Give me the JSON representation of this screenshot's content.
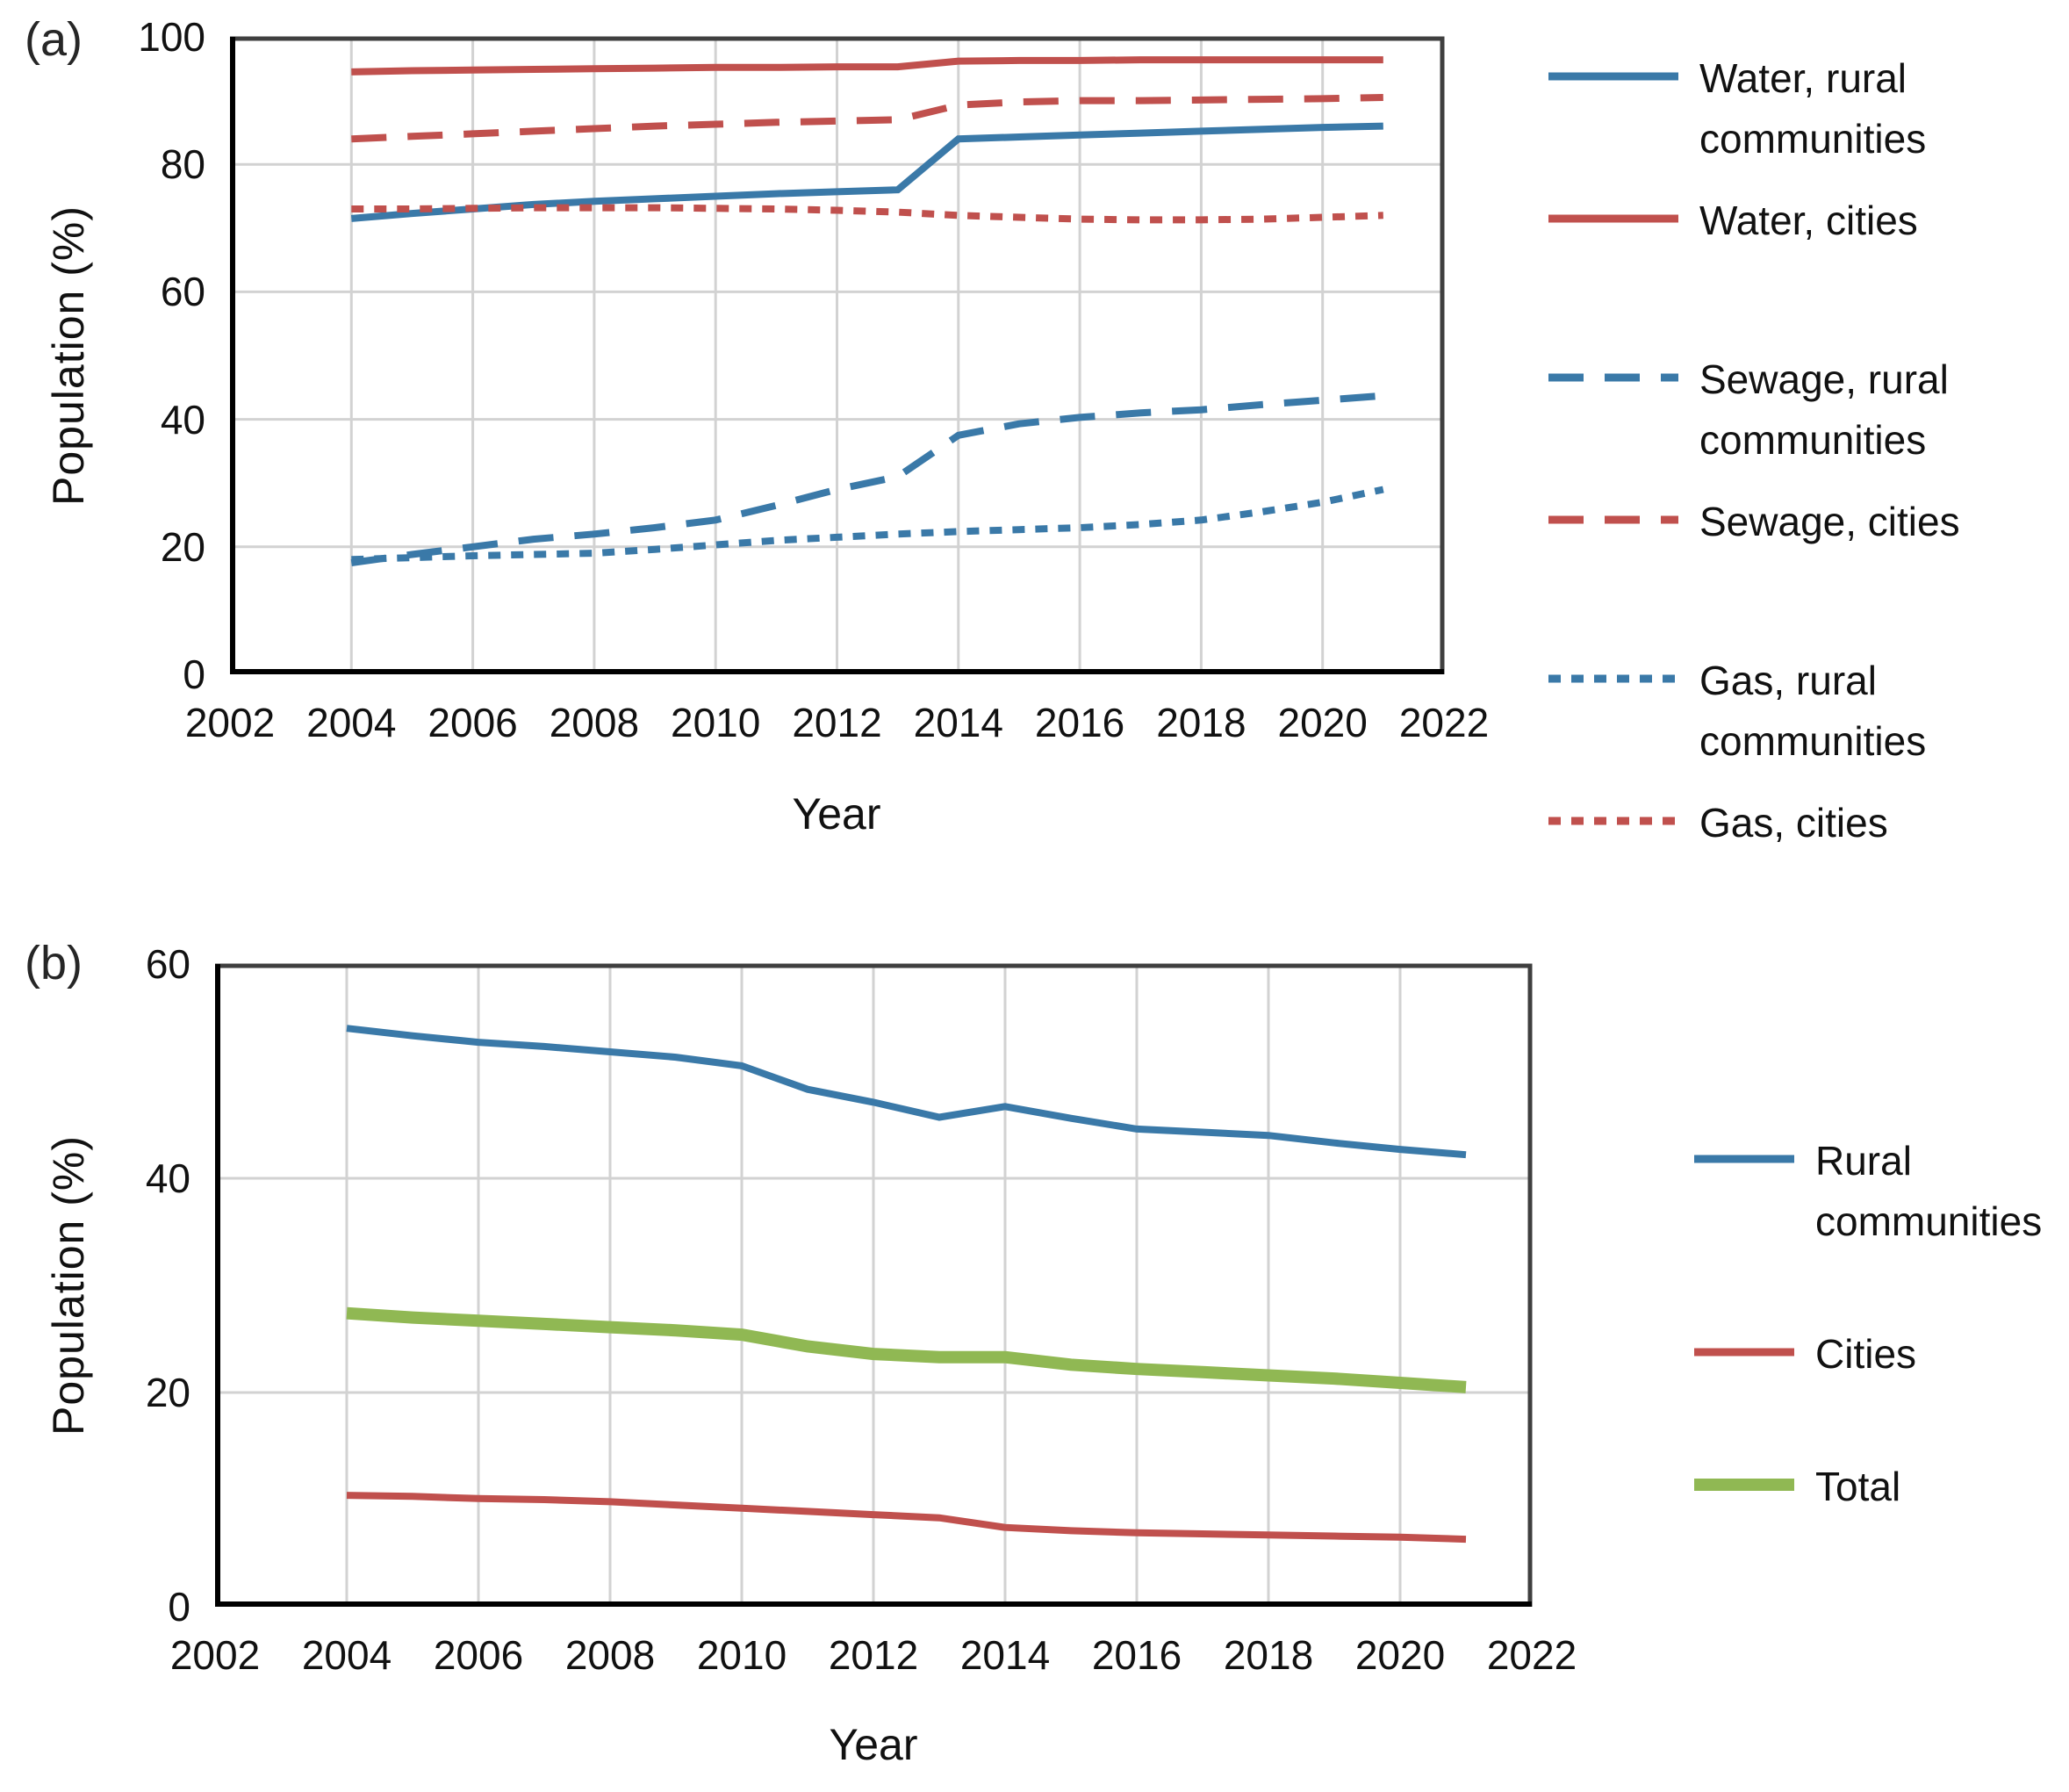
{
  "figure": {
    "panel_a_label": "(a)",
    "panel_b_label": "(b)"
  },
  "colors": {
    "blue": "#3a79a8",
    "red": "#c0504d",
    "green": "#90b853",
    "grid": "#d2d2d2",
    "border": "#3f3f3f",
    "axis": "#000000",
    "text": "#111111"
  },
  "chart_data": [
    {
      "id": "a",
      "type": "line",
      "title": "",
      "xlabel": "Year",
      "ylabel": "Population (%)",
      "xlim": [
        2002,
        2022
      ],
      "ylim": [
        0,
        100
      ],
      "x_ticks": [
        2002,
        2004,
        2006,
        2008,
        2010,
        2012,
        2014,
        2016,
        2018,
        2020,
        2022
      ],
      "y_ticks": [
        0,
        20,
        40,
        60,
        80,
        100
      ],
      "grid": true,
      "legend_position": "right",
      "x": [
        2004,
        2005,
        2006,
        2007,
        2008,
        2009,
        2010,
        2011,
        2012,
        2013,
        2014,
        2015,
        2016,
        2017,
        2018,
        2019,
        2020,
        2021
      ],
      "series": [
        {
          "name": "Water, rural communities",
          "label_lines": [
            "Water, rural",
            "communities"
          ],
          "color": "blue",
          "dash": "solid",
          "thick": false,
          "values": [
            71.5,
            72.3,
            73.0,
            73.7,
            74.2,
            74.6,
            75.0,
            75.4,
            75.7,
            76.0,
            84.0,
            84.3,
            84.6,
            84.9,
            85.2,
            85.5,
            85.8,
            86.0
          ]
        },
        {
          "name": "Water, cities",
          "label_lines": [
            "Water, cities"
          ],
          "color": "red",
          "dash": "solid",
          "thick": false,
          "values": [
            94.5,
            94.7,
            94.8,
            94.9,
            95.0,
            95.1,
            95.2,
            95.2,
            95.3,
            95.3,
            96.2,
            96.3,
            96.3,
            96.4,
            96.4,
            96.4,
            96.4,
            96.4
          ]
        },
        {
          "name": "Sewage, rural communities",
          "label_lines": [
            "Sewage, rural",
            "communities"
          ],
          "color": "blue",
          "dash": "long",
          "thick": false,
          "values": [
            17.5,
            18.8,
            20.0,
            21.2,
            22.0,
            23.0,
            24.2,
            26.5,
            29.0,
            31.0,
            37.5,
            39.3,
            40.3,
            41.0,
            41.5,
            42.3,
            43.0,
            43.7
          ]
        },
        {
          "name": "Sewage, cities",
          "label_lines": [
            "Sewage, cities"
          ],
          "color": "red",
          "dash": "long",
          "thick": false,
          "values": [
            84.0,
            84.4,
            84.8,
            85.2,
            85.6,
            86.0,
            86.3,
            86.6,
            86.8,
            87.0,
            89.3,
            89.8,
            90.0,
            90.0,
            90.1,
            90.2,
            90.3,
            90.5
          ]
        },
        {
          "name": "Gas, rural communities",
          "label_lines": [
            "Gas, rural",
            "communities"
          ],
          "color": "blue",
          "dash": "short",
          "thick": false,
          "values": [
            18.0,
            18.3,
            18.6,
            18.8,
            19.0,
            19.6,
            20.3,
            21.0,
            21.5,
            22.0,
            22.4,
            22.7,
            23.0,
            23.5,
            24.2,
            25.5,
            27.0,
            29.0
          ]
        },
        {
          "name": "Gas, cities",
          "label_lines": [
            "Gas, cities"
          ],
          "color": "red",
          "dash": "short",
          "thick": false,
          "values": [
            73.0,
            73.0,
            73.1,
            73.2,
            73.2,
            73.2,
            73.1,
            73.0,
            72.8,
            72.5,
            72.0,
            71.7,
            71.4,
            71.3,
            71.3,
            71.4,
            71.7,
            72.0
          ]
        }
      ]
    },
    {
      "id": "b",
      "type": "line",
      "title": "",
      "xlabel": "Year",
      "ylabel": "Population (%)",
      "xlim": [
        2002,
        2022
      ],
      "ylim": [
        0,
        60
      ],
      "x_ticks": [
        2002,
        2004,
        2006,
        2008,
        2010,
        2012,
        2014,
        2016,
        2018,
        2020,
        2022
      ],
      "y_ticks": [
        0,
        20,
        40,
        60
      ],
      "grid": true,
      "legend_position": "right",
      "x": [
        2004,
        2005,
        2006,
        2007,
        2008,
        2009,
        2010,
        2011,
        2012,
        2013,
        2014,
        2015,
        2016,
        2017,
        2018,
        2019,
        2020,
        2021
      ],
      "series": [
        {
          "name": "Rural communities",
          "label_lines": [
            "Rural",
            "communities"
          ],
          "color": "blue",
          "dash": "solid",
          "thick": false,
          "values": [
            54.0,
            53.3,
            52.7,
            52.3,
            51.8,
            51.3,
            50.5,
            48.3,
            47.1,
            45.7,
            46.7,
            45.6,
            44.6,
            44.3,
            44.0,
            43.3,
            42.7,
            42.2
          ]
        },
        {
          "name": "Cities",
          "label_lines": [
            "Cities"
          ],
          "color": "red",
          "dash": "solid",
          "thick": false,
          "values": [
            10.4,
            10.3,
            10.1,
            10.0,
            9.8,
            9.5,
            9.2,
            8.9,
            8.6,
            8.3,
            7.4,
            7.1,
            6.9,
            6.8,
            6.7,
            6.6,
            6.5,
            6.3
          ]
        },
        {
          "name": "Total",
          "label_lines": [
            "Total"
          ],
          "color": "green",
          "dash": "solid",
          "thick": true,
          "values": [
            27.4,
            27.0,
            26.7,
            26.4,
            26.1,
            25.8,
            25.4,
            24.3,
            23.6,
            23.3,
            23.3,
            22.6,
            22.2,
            21.9,
            21.6,
            21.3,
            20.9,
            20.5
          ]
        }
      ]
    }
  ]
}
